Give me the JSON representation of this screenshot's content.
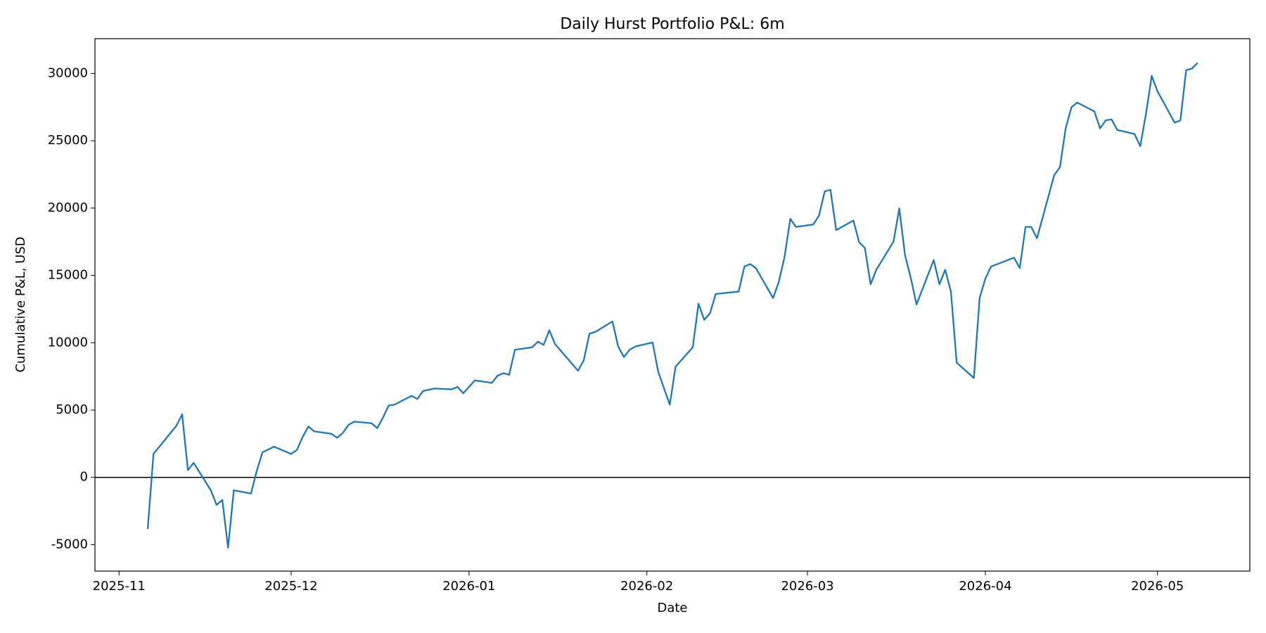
{
  "chart_data": {
    "type": "line",
    "title": "Daily Hurst Portfolio P&L: 6m",
    "xlabel": "Date",
    "ylabel": "Cumulative P&L, USD",
    "x": [
      20398,
      20399,
      20403,
      20404,
      20405,
      20406,
      20409,
      20410,
      20411,
      20412,
      20413,
      20416,
      20417,
      20418,
      20420,
      20423,
      20424,
      20425,
      20426,
      20427,
      20430,
      20431,
      20432,
      20433,
      20434,
      20437,
      20438,
      20439,
      20440,
      20441,
      20444,
      20445,
      20446,
      20448,
      20451,
      20452,
      20453,
      20455,
      20458,
      20459,
      20460,
      20461,
      20462,
      20465,
      20466,
      20467,
      20468,
      20469,
      20473,
      20474,
      20475,
      20476,
      20479,
      20480,
      20481,
      20482,
      20483,
      20486,
      20487,
      20489,
      20490,
      20493,
      20494,
      20495,
      20496,
      20497,
      20501,
      20502,
      20503,
      20504,
      20507,
      20508,
      20509,
      20510,
      20511,
      20514,
      20515,
      20516,
      20517,
      20518,
      20521,
      20522,
      20523,
      20524,
      20525,
      20528,
      20529,
      20530,
      20531,
      20532,
      20535,
      20536,
      20537,
      20538,
      20539,
      20542,
      20543,
      20544,
      20545,
      20549,
      20550,
      20551,
      20552,
      20553,
      20556,
      20557,
      20558,
      20559,
      20560,
      20563,
      20564,
      20565,
      20566,
      20567,
      20570,
      20571,
      20572,
      20573,
      20574,
      20577,
      20578,
      20579,
      20580,
      20581
    ],
    "series": [
      {
        "name": "P&L",
        "color": "#1f77b4",
        "values": [
          -3840,
          1740,
          3840,
          4680,
          540,
          1080,
          -960,
          -2040,
          -1680,
          -5220,
          -960,
          -1200,
          480,
          1860,
          2280,
          1740,
          2040,
          3000,
          3780,
          3420,
          3240,
          2940,
          3300,
          3900,
          4140,
          4020,
          3660,
          4440,
          5340,
          5400,
          6060,
          5820,
          6420,
          6600,
          6540,
          6720,
          6240,
          7200,
          7020,
          7560,
          7740,
          7620,
          9480,
          9660,
          10080,
          9840,
          10920,
          9900,
          7920,
          8700,
          10680,
          10800,
          11580,
          9720,
          8940,
          9480,
          9720,
          10020,
          7800,
          5400,
          8220,
          9660,
          12900,
          11700,
          12180,
          13620,
          13800,
          15660,
          15840,
          15540,
          13320,
          14520,
          16380,
          19200,
          18600,
          18780,
          19440,
          21240,
          21360,
          18360,
          19080,
          17460,
          17040,
          14340,
          15420,
          17520,
          19980,
          16500,
          14820,
          12840,
          16140,
          14340,
          15420,
          13800,
          8520,
          7380,
          13320,
          14760,
          15660,
          16320,
          15540,
          18600,
          18600,
          17760,
          22440,
          23040,
          25920,
          27480,
          27840,
          27180,
          25920,
          26520,
          26580,
          25800,
          25500,
          24600,
          27000,
          29820,
          28680,
          26340,
          26520,
          30240,
          30360,
          30780
        ]
      }
    ],
    "reference_line": 0,
    "xlim": [
      20388.8,
      20590.1
    ],
    "xticks": [
      {
        "value": 20393,
        "label": "2025-11"
      },
      {
        "value": 20423,
        "label": "2025-12"
      },
      {
        "value": 20454,
        "label": "2026-01"
      },
      {
        "value": 20485,
        "label": "2026-02"
      },
      {
        "value": 20513,
        "label": "2026-03"
      },
      {
        "value": 20544,
        "label": "2026-04"
      },
      {
        "value": 20574,
        "label": "2026-05"
      }
    ],
    "ylim": [
      -6960,
      32580
    ],
    "yticks": [
      -5000,
      0,
      5000,
      10000,
      15000,
      20000,
      25000,
      30000
    ],
    "grid": false
  }
}
